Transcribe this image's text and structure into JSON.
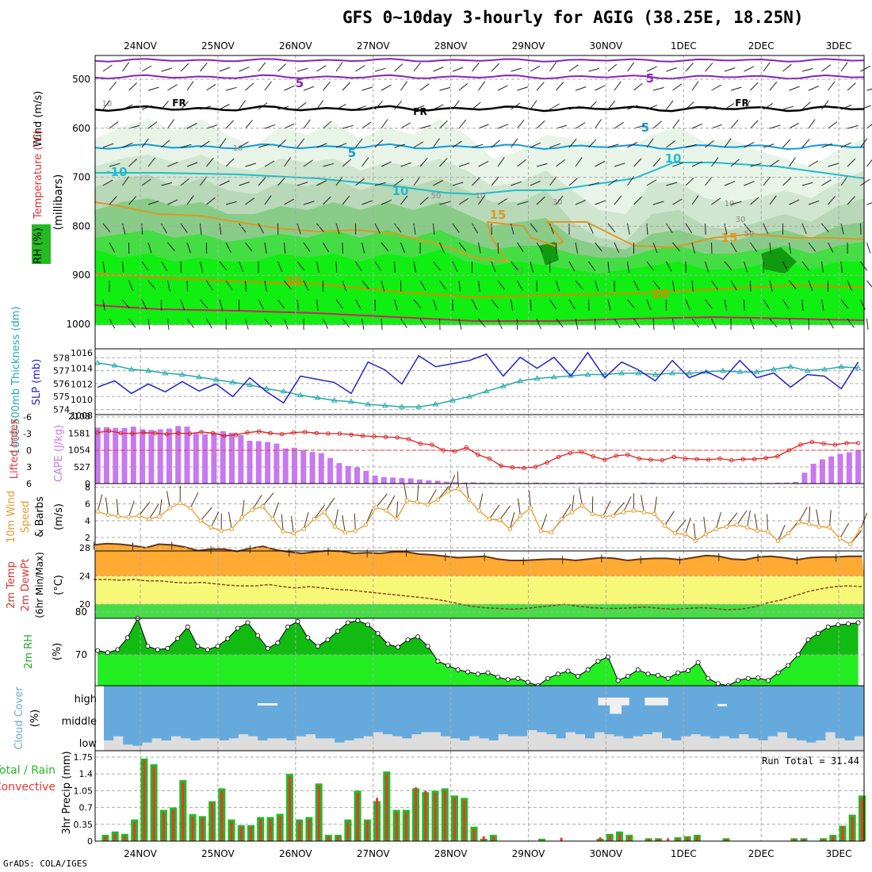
{
  "title": "GFS 0~10day 3-hourly for AGIG (38.25E, 18.25N)",
  "credit": "GrADS: COLA/IGES",
  "days": [
    "24NOV",
    "25NOV",
    "26NOV",
    "27NOV",
    "28NOV",
    "29NOV",
    "30NOV",
    "1DEC",
    "2DEC",
    "3DEC"
  ],
  "colors": {
    "grid": "#aaaaaa",
    "rh_green": "#00cc00",
    "cape": "#c878f0",
    "slp": "#2222cc",
    "thick": "#22aaaa",
    "temp": "#ff8c00",
    "dew": "#cc2222",
    "cloud": "#66aadd",
    "precip_total": "#22bb22",
    "precip_conv": "#ee3333"
  },
  "chart_data": [
    {
      "type": "heatmap",
      "name": "upper-air",
      "ylabel_parts": [
        "RH (%)",
        "Temperature (°C)",
        "Wind (m/s)"
      ],
      "yunit": "(millibars)",
      "yticks": [
        500,
        600,
        700,
        800,
        900,
        1000
      ],
      "ylim": [
        1000,
        450
      ],
      "contour_labels": [
        "5",
        "5",
        "FR",
        "FR",
        "FR",
        "5",
        "5",
        "-10",
        "10",
        "10",
        "15",
        "15",
        "20",
        "20"
      ],
      "rh_labels": [
        "10",
        "10",
        "10",
        "10",
        "30",
        "30",
        "50",
        "50",
        "50"
      ]
    },
    {
      "type": "line",
      "name": "slp-thickness",
      "series": [
        {
          "name": "1000-500mb Thickness (dm)",
          "values": [
            577.6,
            577.4,
            577.1,
            577.0,
            576.8,
            576.7,
            576.5,
            576.3,
            576.1,
            575.9,
            575.6,
            575.4,
            575.1,
            574.9,
            574.7,
            574.6,
            574.4,
            574.3,
            574.2,
            574.2,
            574.4,
            574.7,
            575.0,
            575.4,
            575.8,
            576.2,
            576.4,
            576.5,
            576.6,
            576.7,
            576.7,
            576.8,
            576.8,
            576.7,
            576.8,
            576.8,
            576.9,
            577.0,
            576.9,
            576.9,
            577.1,
            577.3,
            577.0,
            577.1,
            577.3,
            577.2
          ]
        },
        {
          "name": "SLP (mb)",
          "values": [
            1011.6,
            1012.4,
            1010.8,
            1012.0,
            1011.0,
            1012.3,
            1011.1,
            1012.0,
            1010.4,
            1012.8,
            1011.0,
            1009.6,
            1013.0,
            1012.6,
            1012.2,
            1010.8,
            1014.8,
            1013.8,
            1012.0,
            1015.6,
            1014.2,
            1014.6,
            1015.0,
            1015.8,
            1013.0,
            1015.4,
            1014.0,
            1015.4,
            1013.0,
            1016.0,
            1012.8,
            1014.8,
            1013.8,
            1012.4,
            1015.0,
            1012.8,
            1013.6,
            1012.6,
            1015.0,
            1012.8,
            1013.4,
            1011.6,
            1013.2,
            1013.0,
            1011.4,
            1014.8
          ]
        }
      ],
      "yticks_left": [
        574,
        575,
        576,
        577,
        578
      ],
      "yticks_right": [
        1008,
        1010,
        1012,
        1014,
        1016
      ],
      "ylabel_left": "1000-500mb Thickness (dm)",
      "ylabel_right": "SLP (mb)"
    },
    {
      "type": "bar",
      "name": "cape-li",
      "series": [
        {
          "name": "CAPE (J/kg)",
          "values": [
            1750,
            1760,
            1740,
            1740,
            1780,
            1700,
            1680,
            1700,
            1720,
            1800,
            1780,
            1600,
            1540,
            1600,
            1640,
            1590,
            1520,
            1340,
            1330,
            1300,
            1250,
            1100,
            1120,
            1050,
            990,
            950,
            800,
            640,
            550,
            510,
            400,
            250,
            200,
            190,
            170,
            160,
            130,
            100,
            90,
            60,
            40,
            30,
            40,
            30,
            30,
            20,
            20,
            30,
            20,
            30,
            20,
            20,
            20,
            30,
            30,
            30,
            30,
            20,
            20,
            20,
            20,
            30,
            30,
            20,
            20,
            20,
            20,
            20,
            20,
            20,
            20,
            20,
            20,
            20,
            20,
            20,
            30,
            30,
            50,
            340,
            620,
            760,
            850,
            930,
            980,
            1050
          ]
        },
        {
          "name": "Lifted Index",
          "values": [
            -3.2,
            -3.5,
            -3.1,
            -3.0,
            -3.2,
            -3.1,
            -2.9,
            -3.1,
            -3.0,
            -3.3,
            -3.1,
            -2.6,
            -2.8,
            -3.2,
            -3.4,
            -3.1,
            -2.9,
            -3.2,
            -3.3,
            -3.1,
            -3.0,
            -3.0,
            -2.8,
            -2.6,
            -2.5,
            -2.4,
            -2.3,
            -2.0,
            -1.2,
            -1.0,
            0.0,
            0.2,
            -0.5,
            0.8,
            1.5,
            2.8,
            3.1,
            3.2,
            3.0,
            2.2,
            1.2,
            0.5,
            0.3,
            1.1,
            1.7,
            1.0,
            0.8,
            1.5,
            1.7,
            1.8,
            1.2,
            1.5,
            1.6,
            1.7,
            1.5,
            1.8,
            1.6,
            1.6,
            1.4,
            1.1,
            0.0,
            -1.0,
            -1.5,
            -1.2,
            -1.0,
            -1.3,
            -1.3
          ]
        }
      ],
      "yticks_left": [
        6,
        3,
        0,
        -3,
        -6
      ],
      "yticks_right": [
        0,
        527,
        1054,
        1581,
        2108
      ],
      "ylabel_left": "Lifted Index",
      "ylabel_right": "CAPE (J/kg)"
    },
    {
      "type": "line",
      "name": "wind10m",
      "ylabel": "10m Wind Speed (m/s) & Barbs",
      "ylabel_parts": [
        "10m Wind",
        "Speed",
        "& Barbs",
        "(m/s)"
      ],
      "yticks": [
        2,
        4,
        6,
        8
      ],
      "values": [
        5.1,
        4.7,
        4.5,
        4.4,
        4.6,
        4.2,
        4.5,
        5.5,
        6.1,
        5.5,
        4.0,
        3.2,
        2.8,
        3.0,
        4.4,
        5.3,
        5.7,
        4.2,
        2.7,
        2.5,
        3.0,
        4.2,
        5.0,
        3.3,
        2.6,
        2.8,
        3.5,
        5.6,
        5.2,
        4.2,
        6.4,
        6.2,
        5.9,
        6.5,
        7.5,
        7.8,
        6.5,
        5.2,
        4.2,
        4.1,
        3.0,
        4.6,
        5.5,
        2.8,
        2.6,
        4.2,
        5.0,
        5.8,
        4.8,
        4.5,
        4.6,
        5.0,
        5.2,
        5.0,
        4.8,
        3.4,
        2.5,
        2.4,
        1.6,
        2.4,
        3.0,
        3.3,
        3.5,
        3.2,
        2.8,
        2.7,
        1.6,
        2.5,
        3.8,
        3.6,
        3.3,
        3.2,
        1.9,
        1.2,
        3.0
      ]
    },
    {
      "type": "area",
      "name": "temp2m",
      "ylabel": "2m Temp / 2m DewPt (6hr Min/Max) (°C)",
      "ylabel_parts": [
        "2m Temp",
        "2m DewPt",
        "(6hr Min/Max)",
        "(°C)"
      ],
      "yticks": [
        20,
        24,
        28
      ],
      "series": [
        {
          "name": "2m Temp",
          "values": [
            28.4,
            28.6,
            28.5,
            28.3,
            28.0,
            28.5,
            28.4,
            28.1,
            27.6,
            27.8,
            27.8,
            27.5,
            27.9,
            28.2,
            27.7,
            27.4,
            27.2,
            27.4,
            27.6,
            27.5,
            27.2,
            27.3,
            27.2,
            27.4,
            27.4,
            27.1,
            27.0,
            26.8,
            26.6,
            26.7,
            26.8,
            26.4,
            26.2,
            26.2,
            26.3,
            26.4,
            26.4,
            26.2,
            26.4,
            26.6,
            26.5,
            26.2,
            26.4,
            26.5,
            26.5,
            26.3,
            26.6,
            26.9,
            26.8,
            26.4,
            26.3,
            26.7,
            26.8,
            26.6,
            26.3,
            26.6,
            26.7,
            26.7,
            26.8,
            26.8
          ]
        },
        {
          "name": "2m DewPt",
          "values": [
            23.5,
            23.5,
            23.4,
            23.5,
            23.3,
            23.3,
            23.1,
            23.0,
            23.1,
            22.9,
            22.7,
            22.6,
            22.6,
            22.8,
            22.5,
            22.3,
            22.5,
            22.3,
            22.1,
            22.0,
            21.8,
            21.6,
            21.4,
            21.2,
            21.0,
            20.8,
            20.5,
            20.1,
            19.7,
            19.5,
            19.4,
            19.3,
            19.4,
            19.6,
            19.8,
            20.0,
            19.7,
            19.5,
            19.4,
            19.4,
            19.5,
            19.6,
            19.4,
            19.3,
            19.4,
            19.5,
            19.4,
            19.2,
            19.3,
            19.6,
            20.2,
            20.6,
            21.2,
            21.8,
            22.2,
            22.5,
            22.6,
            22.5
          ]
        }
      ]
    },
    {
      "type": "area",
      "name": "rh2m",
      "ylabel": "2m RH (%)",
      "yticks": [
        70,
        80
      ],
      "values": [
        71.0,
        70.5,
        71.2,
        74.0,
        78.5,
        72.0,
        71.2,
        71.5,
        73.8,
        76.5,
        72.0,
        71.2,
        72.0,
        73.8,
        76.2,
        77.5,
        74.5,
        71.5,
        72.8,
        76.5,
        77.8,
        74.0,
        72.0,
        73.5,
        75.5,
        77.5,
        78.0,
        77.0,
        75.0,
        72.5,
        71.8,
        73.5,
        74.2,
        72.0,
        68.5,
        67.5,
        66.5,
        66.0,
        65.5,
        65.8,
        64.8,
        64.2,
        64.5,
        63.6,
        62.5,
        64.5,
        65.5,
        66.2,
        65.0,
        66.5,
        68.5,
        69.5,
        64.0,
        65.0,
        66.5,
        65.5,
        65.2,
        64.5,
        65.8,
        66.3,
        68.2,
        64.5,
        63.3,
        62.4,
        64.0,
        64.5,
        64.6,
        64.0,
        65.8,
        67.5,
        70.0,
        73.5,
        75.0,
        76.5,
        77.0,
        77.2,
        77.5
      ]
    },
    {
      "type": "area",
      "name": "cloud-cover",
      "ylabel": "Cloud Cover (%)",
      "yticks": [
        "high",
        "middle",
        "low"
      ],
      "low_values": [
        25,
        35,
        15,
        12,
        20,
        30,
        25,
        35,
        30,
        25,
        30,
        30,
        25,
        30,
        40,
        35,
        25,
        30,
        30,
        25,
        35,
        40,
        30,
        30,
        20,
        25,
        30,
        35,
        45,
        40,
        35,
        30,
        40,
        45,
        45,
        35,
        30,
        25,
        35,
        30,
        25,
        40,
        35,
        35,
        50,
        45,
        40,
        30,
        45,
        40,
        30,
        45,
        40,
        35,
        30,
        35,
        40,
        45,
        30,
        25,
        35,
        40,
        35,
        30,
        35,
        30,
        40,
        30,
        25,
        35,
        45,
        30,
        25,
        20,
        25,
        45,
        30,
        25,
        35
      ],
      "high_gaps": [
        {
          "day": 5.9,
          "len": 0.4,
          "frac": 0.12
        },
        {
          "day": 6.05,
          "len": 0.15,
          "frac": 0.25
        },
        {
          "day": 6.5,
          "len": 0.3,
          "frac": 0.12
        }
      ]
    },
    {
      "type": "bar",
      "name": "precip",
      "ylabel": "3hr Precip (mm)",
      "ylabel_parts": [
        "Total / Rain",
        "Convective"
      ],
      "yticks": [
        0,
        0.35,
        0.7,
        1.05,
        1.4,
        1.75
      ],
      "annotation": "Run Total = 31.44",
      "series": [
        {
          "name": "Total",
          "values": [
            0.13,
            0.2,
            0.15,
            0.45,
            1.72,
            1.6,
            0.65,
            0.7,
            1.27,
            0.56,
            0.52,
            0.83,
            1.1,
            0.45,
            0.33,
            0.33,
            0.5,
            0.5,
            0.57,
            1.4,
            0.45,
            0.5,
            1.2,
            0.13,
            0.13,
            0.45,
            1.05,
            0.45,
            0.83,
            1.45,
            0.65,
            0.65,
            1.1,
            1.02,
            1.05,
            1.1,
            0.95,
            0.9,
            0.3,
            0.05,
            0.13,
            0,
            0,
            0,
            0,
            0.05,
            0,
            0,
            0,
            0,
            0,
            0.05,
            0.15,
            0.2,
            0.13,
            0,
            0.06,
            0.06,
            0,
            0.08,
            0.1,
            0.13,
            0,
            0,
            0.06,
            0,
            0,
            0,
            0,
            0,
            0,
            0.06,
            0.06,
            0,
            0.06,
            0.13,
            0.32,
            0.55,
            0.95
          ]
        },
        {
          "name": "Convective",
          "values": [
            0.1,
            0.15,
            0.1,
            0.4,
            1.68,
            1.55,
            0.6,
            0.65,
            1.22,
            0.5,
            0.48,
            0.8,
            1.05,
            0.4,
            0.3,
            0.3,
            0.45,
            0.45,
            0.52,
            1.35,
            0.42,
            0.45,
            1.15,
            0.1,
            0.1,
            0.4,
            1.0,
            0.42,
            0.9,
            1.4,
            0.6,
            0.6,
            1.12,
            1.05,
            1.0,
            1.05,
            0.9,
            0.85,
            0.25,
            0.1,
            0.1,
            0,
            0,
            0,
            0,
            0,
            0,
            0.07,
            0,
            0,
            0,
            0.08,
            0.12,
            0.15,
            0.1,
            0,
            0.05,
            0.05,
            0.06,
            0.06,
            0.08,
            0.1,
            0,
            0,
            0.05,
            0,
            0,
            0,
            0,
            0,
            0,
            0.05,
            0.05,
            0,
            0.05,
            0.1,
            0.3,
            0.5,
            0.9
          ]
        }
      ]
    }
  ]
}
